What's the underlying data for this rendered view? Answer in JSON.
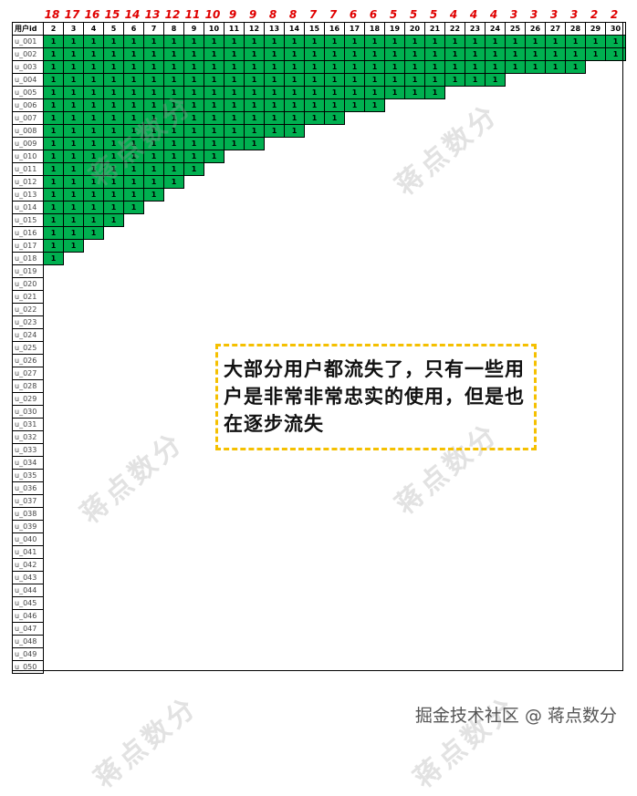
{
  "table": {
    "header_label": "用户id",
    "days": [
      2,
      3,
      4,
      5,
      6,
      7,
      8,
      9,
      10,
      11,
      12,
      13,
      14,
      15,
      16,
      17,
      18,
      19,
      20,
      21,
      22,
      23,
      24,
      25,
      26,
      27,
      28,
      29,
      30
    ],
    "retained_counts": [
      18,
      17,
      16,
      15,
      14,
      13,
      12,
      11,
      10,
      9,
      9,
      8,
      8,
      7,
      7,
      6,
      6,
      5,
      5,
      5,
      4,
      4,
      4,
      3,
      3,
      3,
      3,
      2,
      2
    ],
    "user_count": 50,
    "user_prefix": "u_",
    "cell_value": "1",
    "active_color": "#00b050",
    "count_color": "#e00000"
  },
  "note": {
    "text": "大部分用户都流失了，只有一些用户是非常非常忠实的使用，但是也在逐步流失",
    "border_color": "#f5c000"
  },
  "watermark": "蒋点数分",
  "footer": "掘金技术社区 @ 蒋点数分"
}
